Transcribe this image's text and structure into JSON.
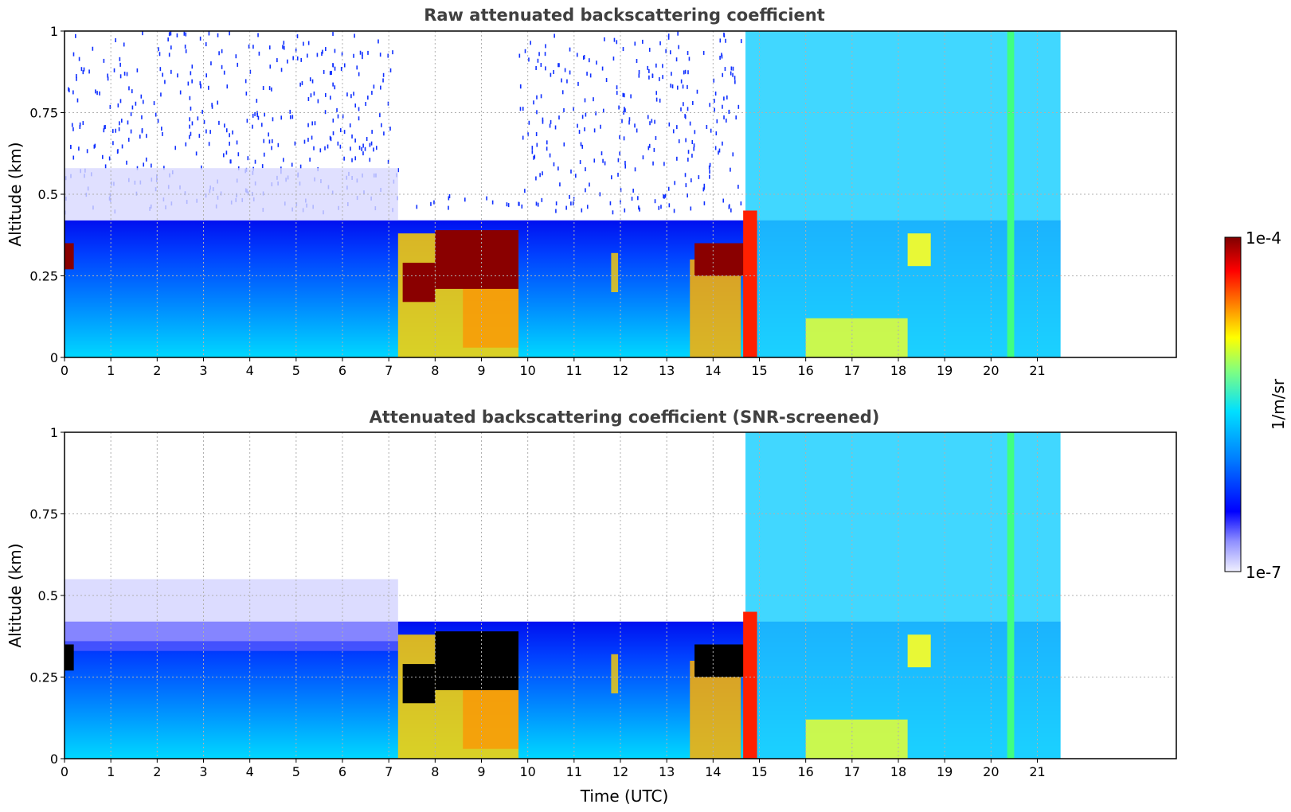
{
  "chart_data": [
    {
      "type": "heatmap",
      "title": "Raw attenuated backscattering coefficient",
      "xlabel": "",
      "ylabel": "Altitude (km)",
      "xlim": [
        0,
        24
      ],
      "ylim": [
        0,
        1
      ],
      "x_ticks": [
        "0",
        "1",
        "2",
        "3",
        "4",
        "5",
        "6",
        "7",
        "8",
        "9",
        "10",
        "11",
        "12",
        "13",
        "14",
        "15",
        "16",
        "17",
        "18",
        "19",
        "20",
        "21"
      ],
      "y_ticks": [
        "0",
        "0.25",
        "0.5",
        "0.75",
        "1"
      ],
      "grid": true,
      "data_extent_hours": [
        0,
        21.5
      ],
      "screened": false
    },
    {
      "type": "heatmap",
      "title": "Attenuated backscattering coefficient (SNR-screened)",
      "xlabel": "Time (UTC)",
      "ylabel": "Altitude (km)",
      "xlim": [
        0,
        24
      ],
      "ylim": [
        0,
        1
      ],
      "x_ticks": [
        "0",
        "1",
        "2",
        "3",
        "4",
        "5",
        "6",
        "7",
        "8",
        "9",
        "10",
        "11",
        "12",
        "13",
        "14",
        "15",
        "16",
        "17",
        "18",
        "19",
        "20",
        "21"
      ],
      "y_ticks": [
        "0",
        "0.25",
        "0.5",
        "0.75",
        "1"
      ],
      "grid": true,
      "data_extent_hours": [
        0,
        21.5
      ],
      "screened": true
    }
  ],
  "colorbar": {
    "label": "1/m/sr",
    "max_label": "1e-4",
    "min_label": "1e-7",
    "colormap": "jet-like, log scale",
    "colors": [
      "#f0f0ff",
      "#9090ff",
      "#0000ff",
      "#0080ff",
      "#00e0ff",
      "#80ff80",
      "#ffff00",
      "#ff8000",
      "#ff0000",
      "#800000"
    ]
  }
}
